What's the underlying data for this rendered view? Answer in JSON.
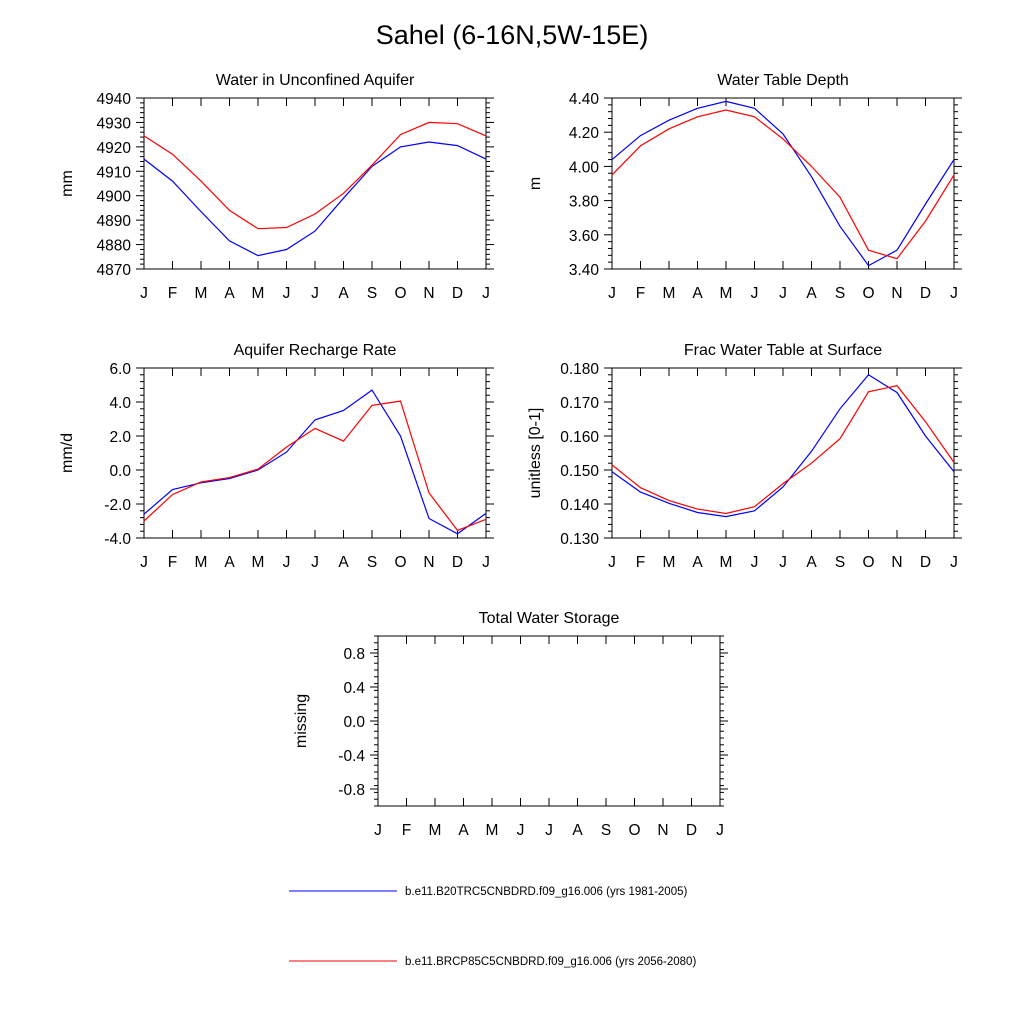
{
  "figure": {
    "title": "Sahel (6-16N,5W-15E)",
    "legend": [
      {
        "label": "b.e11.B20TRC5CNBDRD.f09_g16.006 (yrs 1981-2005)",
        "color": "#0000ff"
      },
      {
        "label": "b.e11.BRCP85C5CNBDRD.f09_g16.006 (yrs 2056-2080)",
        "color": "#ff0000"
      }
    ]
  },
  "chart_data": [
    {
      "type": "line",
      "title": "Water in Unconfined Aquifer",
      "ylabel": "mm",
      "xlabel": "",
      "categories": [
        "J",
        "F",
        "M",
        "A",
        "M",
        "J",
        "J",
        "A",
        "S",
        "O",
        "N",
        "D",
        "J"
      ],
      "ylim": [
        4870,
        4940
      ],
      "yticks": [
        4870,
        4880,
        4890,
        4900,
        4910,
        4920,
        4930,
        4940
      ],
      "ytick_labels": [
        "4870",
        "4880",
        "4890",
        "4900",
        "4910",
        "4920",
        "4930",
        "4940"
      ],
      "series": [
        {
          "name": "b.e11.B20TRC5CNBDRD.f09_g16.006 (yrs 1981-2005)",
          "color": "#0000ff",
          "values": [
            4915,
            4906,
            4893.5,
            4881.5,
            4875.5,
            4878,
            4885.5,
            4899,
            4912,
            4920,
            4922,
            4920.5,
            4915
          ]
        },
        {
          "name": "b.e11.BRCP85C5CNBDRD.f09_g16.006 (yrs 2056-2080)",
          "color": "#ff0000",
          "values": [
            4924.5,
            4917,
            4906,
            4894,
            4886.5,
            4887,
            4892.5,
            4901,
            4912.5,
            4925,
            4930,
            4929.5,
            4924.5
          ]
        }
      ]
    },
    {
      "type": "line",
      "title": "Water Table Depth",
      "ylabel": "m",
      "xlabel": "",
      "categories": [
        "J",
        "F",
        "M",
        "A",
        "M",
        "J",
        "J",
        "A",
        "S",
        "O",
        "N",
        "D",
        "J"
      ],
      "ylim": [
        3.4,
        4.4
      ],
      "yticks": [
        3.4,
        3.6,
        3.8,
        4.0,
        4.2,
        4.4
      ],
      "ytick_labels": [
        "3.40",
        "3.60",
        "3.80",
        "4.00",
        "4.20",
        "4.40"
      ],
      "series": [
        {
          "name": "b.e11.B20TRC5CNBDRD.f09_g16.006 (yrs 1981-2005)",
          "color": "#0000ff",
          "values": [
            4.04,
            4.18,
            4.27,
            4.34,
            4.38,
            4.34,
            4.19,
            3.94,
            3.65,
            3.42,
            3.51,
            3.78,
            4.04
          ]
        },
        {
          "name": "b.e11.BRCP85C5CNBDRD.f09_g16.006 (yrs 2056-2080)",
          "color": "#ff0000",
          "values": [
            3.95,
            4.12,
            4.22,
            4.29,
            4.33,
            4.29,
            4.16,
            4.0,
            3.82,
            3.51,
            3.46,
            3.68,
            3.95
          ]
        }
      ]
    },
    {
      "type": "line",
      "title": "Aquifer Recharge Rate",
      "ylabel": "mm/d",
      "xlabel": "",
      "categories": [
        "J",
        "F",
        "M",
        "A",
        "M",
        "J",
        "J",
        "A",
        "S",
        "O",
        "N",
        "D",
        "J"
      ],
      "ylim": [
        -4.0,
        6.0
      ],
      "yticks": [
        -4.0,
        -2.0,
        0.0,
        2.0,
        4.0,
        6.0
      ],
      "ytick_labels": [
        "-4.0",
        "-2.0",
        "0.0",
        "2.0",
        "4.0",
        "6.0"
      ],
      "series": [
        {
          "name": "b.e11.B20TRC5CNBDRD.f09_g16.006 (yrs 1981-2005)",
          "color": "#0000ff",
          "values": [
            -2.6,
            -1.15,
            -0.75,
            -0.5,
            0.0,
            1.05,
            2.95,
            3.5,
            4.7,
            2.0,
            -2.85,
            -3.75,
            -2.55
          ]
        },
        {
          "name": "b.e11.BRCP85C5CNBDRD.f09_g16.006 (yrs 2056-2080)",
          "color": "#ff0000",
          "values": [
            -3.0,
            -1.45,
            -0.7,
            -0.45,
            0.05,
            1.35,
            2.45,
            1.7,
            3.8,
            4.05,
            -1.35,
            -3.55,
            -2.9
          ]
        }
      ]
    },
    {
      "type": "line",
      "title": "Frac Water Table at Surface",
      "ylabel": "unitless [0-1]",
      "xlabel": "",
      "categories": [
        "J",
        "F",
        "M",
        "A",
        "M",
        "J",
        "J",
        "A",
        "S",
        "O",
        "N",
        "D",
        "J"
      ],
      "ylim": [
        0.13,
        0.18
      ],
      "yticks": [
        0.13,
        0.14,
        0.15,
        0.16,
        0.17,
        0.18
      ],
      "ytick_labels": [
        "0.130",
        "0.140",
        "0.150",
        "0.160",
        "0.170",
        "0.180"
      ],
      "series": [
        {
          "name": "b.e11.B20TRC5CNBDRD.f09_g16.006 (yrs 1981-2005)",
          "color": "#0000ff",
          "values": [
            0.1495,
            0.1435,
            0.1402,
            0.1375,
            0.1363,
            0.138,
            0.145,
            0.1555,
            0.168,
            0.178,
            0.1728,
            0.16,
            0.1495
          ]
        },
        {
          "name": "b.e11.BRCP85C5CNBDRD.f09_g16.006 (yrs 2056-2080)",
          "color": "#ff0000",
          "values": [
            0.1515,
            0.1448,
            0.141,
            0.1385,
            0.1372,
            0.1392,
            0.146,
            0.152,
            0.1592,
            0.173,
            0.1748,
            0.1642,
            0.1522
          ]
        }
      ]
    },
    {
      "type": "line",
      "title": "Total Water Storage",
      "ylabel": "missing",
      "xlabel": "",
      "categories": [
        "J",
        "F",
        "M",
        "A",
        "M",
        "J",
        "J",
        "A",
        "S",
        "O",
        "N",
        "D",
        "J"
      ],
      "ylim": [
        -1.0,
        1.0
      ],
      "yticks": [
        -0.8,
        -0.4,
        0.0,
        0.4,
        0.8
      ],
      "ytick_labels": [
        "-0.8",
        "-0.4",
        "0.0",
        "0.4",
        "0.8"
      ],
      "series": []
    }
  ]
}
